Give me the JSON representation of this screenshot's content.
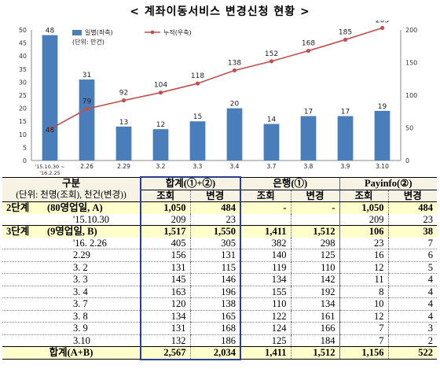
{
  "title": "< 계좌이동서비스 변경신청 현황 >",
  "chart_data": {
    "type": "bar+line",
    "categories": [
      "'15.10.30 ~\n'16.2.25",
      "2.26",
      "2.29",
      "3.2",
      "3.3",
      "3.4",
      "3.7",
      "3.8",
      "3.9",
      "3.10"
    ],
    "series": [
      {
        "name": "일별(좌축)",
        "type": "bar",
        "axis": "left",
        "values": [
          48,
          31,
          13,
          12,
          15,
          20,
          14,
          17,
          17,
          19
        ],
        "color": "#4a7ebb"
      },
      {
        "name": "누적(우축)",
        "type": "line",
        "axis": "right",
        "values": [
          48,
          79,
          92,
          104,
          118,
          138,
          152,
          168,
          185,
          203
        ],
        "color": "#c0504d"
      }
    ],
    "unit_note": "(단위: 만건)",
    "y_left": {
      "min": 0,
      "max": 50,
      "ticks": [
        0,
        5,
        10,
        15,
        20,
        25,
        30,
        35,
        40,
        45,
        50
      ]
    },
    "y_right": {
      "min": 0,
      "max": 200,
      "ticks": [
        0,
        50,
        100,
        150,
        200
      ]
    },
    "grid": false,
    "legend": "top"
  },
  "table": {
    "corner_top": "구분",
    "corner_bottom": "(단위: 천명(조회), 천건(변경))",
    "groups": [
      "합계(①+②)",
      "은행(①)",
      "Payinfo(②)"
    ],
    "subcols": [
      "조회",
      "변경"
    ],
    "stage2": {
      "label": "2단계",
      "sub": "(80영업일, A)",
      "values": [
        "1,050",
        "484",
        "-",
        "-",
        "1,050",
        "484"
      ]
    },
    "stage2_rows": [
      {
        "label": "'15.10.30",
        "values": [
          "209",
          "23",
          "",
          "",
          "209",
          "23"
        ]
      }
    ],
    "stage3": {
      "label": "3단계",
      "sub": "(9영업일, B)",
      "values": [
        "1,517",
        "1,550",
        "1,411",
        "1,512",
        "106",
        "38"
      ]
    },
    "stage3_rows": [
      {
        "label": "'16.  2.26",
        "values": [
          "405",
          "305",
          "382",
          "298",
          "23",
          "7"
        ]
      },
      {
        "label": "2.29",
        "values": [
          "156",
          "131",
          "140",
          "125",
          "16",
          "6"
        ]
      },
      {
        "label": "3.  2",
        "values": [
          "131",
          "115",
          "119",
          "110",
          "12",
          "5"
        ]
      },
      {
        "label": "3.  3",
        "values": [
          "145",
          "146",
          "134",
          "142",
          "11",
          "4"
        ]
      },
      {
        "label": "3.  4",
        "values": [
          "163",
          "196",
          "155",
          "192",
          "8",
          "4"
        ]
      },
      {
        "label": "3.  7",
        "values": [
          "120",
          "138",
          "110",
          "134",
          "10",
          "4"
        ]
      },
      {
        "label": "3.  8",
        "values": [
          "134",
          "165",
          "122",
          "161",
          "12",
          "4"
        ]
      },
      {
        "label": "3.  9",
        "values": [
          "131",
          "168",
          "124",
          "166",
          "7",
          "3"
        ]
      },
      {
        "label": "3.10",
        "values": [
          "132",
          "186",
          "125",
          "184",
          "7",
          "2"
        ]
      }
    ],
    "total": {
      "label": "합계(A+B)",
      "values": [
        "2,567",
        "2,034",
        "1,411",
        "1,512",
        "1,156",
        "522"
      ]
    }
  }
}
